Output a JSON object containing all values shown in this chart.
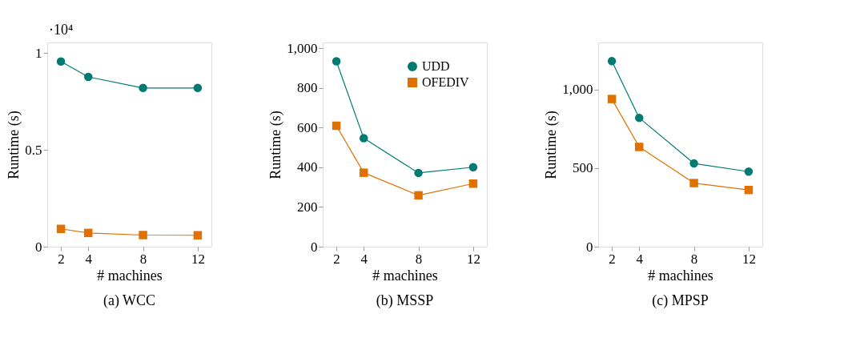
{
  "chart_data": [
    {
      "type": "line",
      "title": "(a) WCC",
      "xlabel": "# machines",
      "ylabel": "Runtime (s)",
      "annotations": [
        "·10⁴"
      ],
      "x": [
        2,
        4,
        8,
        12
      ],
      "xlim": [
        1,
        13
      ],
      "xticks": [
        2,
        4,
        8,
        12
      ],
      "ylim": [
        0,
        1.055
      ],
      "yticks": [
        0,
        0.5,
        1
      ],
      "series": [
        {
          "color": "#007a73",
          "marker": "circle",
          "values": [
            0.957,
            0.877,
            0.82,
            0.82
          ]
        },
        {
          "color": "#e07000",
          "marker": "square",
          "values": [
            0.092,
            0.071,
            0.06,
            0.059
          ]
        }
      ]
    },
    {
      "type": "line",
      "title": "(b) MSSP",
      "xlabel": "# machines",
      "ylabel": "Runtime (s)",
      "x": [
        2,
        4,
        8,
        12
      ],
      "xlim": [
        1,
        13
      ],
      "xticks": [
        2,
        4,
        8,
        12
      ],
      "ylim": [
        0,
        1030
      ],
      "yticks": [
        0,
        200,
        400,
        600,
        800,
        {
          "value": 1000,
          "label": "1,000"
        }
      ],
      "legend": "top right",
      "series": [
        {
          "name": "UDD",
          "color": "#007a73",
          "marker": "circle",
          "values": [
            935,
            547,
            372,
            401
          ]
        },
        {
          "name": "OFEDIV",
          "color": "#e07000",
          "marker": "square",
          "values": [
            610,
            373,
            259,
            318
          ]
        }
      ]
    },
    {
      "type": "line",
      "title": "(c) MPSP",
      "xlabel": "# machines",
      "ylabel": "Runtime (s)",
      "x": [
        2,
        4,
        8,
        12
      ],
      "xlim": [
        1,
        13
      ],
      "xticks": [
        2,
        4,
        8,
        12
      ],
      "ylim": [
        0,
        1300
      ],
      "yticks": [
        0,
        500,
        {
          "value": 1000,
          "label": "1,000"
        }
      ],
      "series": [
        {
          "color": "#007a73",
          "marker": "circle",
          "values": [
            1181,
            820,
            530,
            478
          ]
        },
        {
          "color": "#e07000",
          "marker": "square",
          "values": [
            940,
            635,
            405,
            361
          ]
        }
      ]
    }
  ]
}
